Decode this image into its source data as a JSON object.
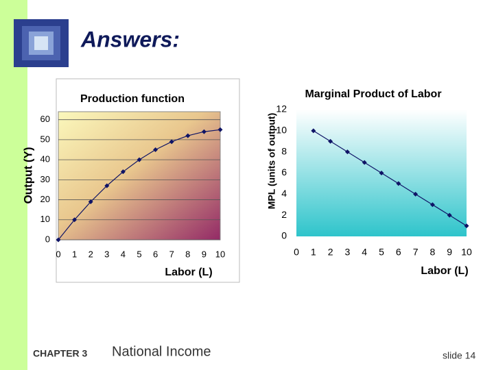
{
  "slide": {
    "title": "Answers:",
    "chapter": "CHAPTER 3",
    "subject": "National Income",
    "number": "slide 14"
  },
  "chart_data": [
    {
      "type": "line",
      "title": "Production function",
      "x_label": "Labor (L)",
      "y_label": "Output (Y)",
      "x": [
        0,
        1,
        2,
        3,
        4,
        5,
        6,
        7,
        8,
        9,
        10
      ],
      "values": [
        0,
        10,
        19,
        27,
        34,
        40,
        45,
        49,
        52,
        54,
        55
      ],
      "color": "#0f1466",
      "xlim": [
        0,
        10
      ],
      "xticks": [
        0,
        1,
        2,
        3,
        4,
        5,
        6,
        7,
        8,
        9,
        10
      ],
      "ylim": [
        0,
        64
      ],
      "yticks": [
        0,
        10,
        20,
        30,
        40,
        50,
        60
      ],
      "grid": true
    },
    {
      "type": "line",
      "title": "Marginal Product of Labor",
      "x_label": "Labor (L)",
      "y_label": "MPL (units of output)",
      "x": [
        1,
        2,
        3,
        4,
        5,
        6,
        7,
        8,
        9,
        10
      ],
      "values": [
        10,
        9,
        8,
        7,
        6,
        5,
        4,
        3,
        2,
        1
      ],
      "color": "#0f1466",
      "xlim": [
        0,
        10
      ],
      "xticks": [
        0,
        1,
        2,
        3,
        4,
        5,
        6,
        7,
        8,
        9,
        10
      ],
      "ylim": [
        0,
        12
      ],
      "yticks": [
        0,
        2,
        4,
        6,
        8,
        10,
        12
      ],
      "grid": false
    }
  ]
}
